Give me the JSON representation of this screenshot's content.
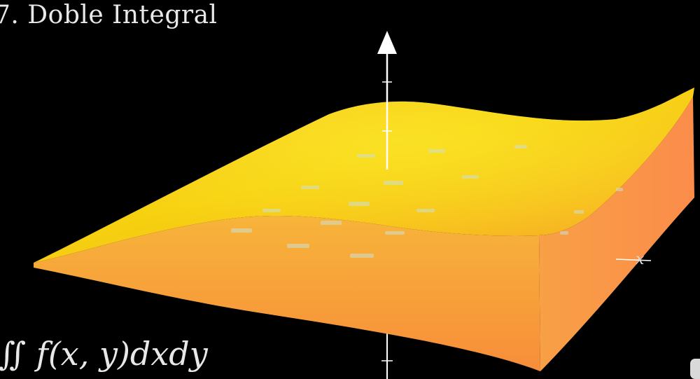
{
  "header": {
    "title": "7. Doble Integral"
  },
  "formula": {
    "text": "∬ f(x, y)dxdy"
  },
  "axes": {
    "x_label": "x"
  },
  "colors": {
    "background": "#000000",
    "surface_top": "#f7c21a",
    "surface_edge": "#f79a35",
    "axis": "#ffffff"
  }
}
